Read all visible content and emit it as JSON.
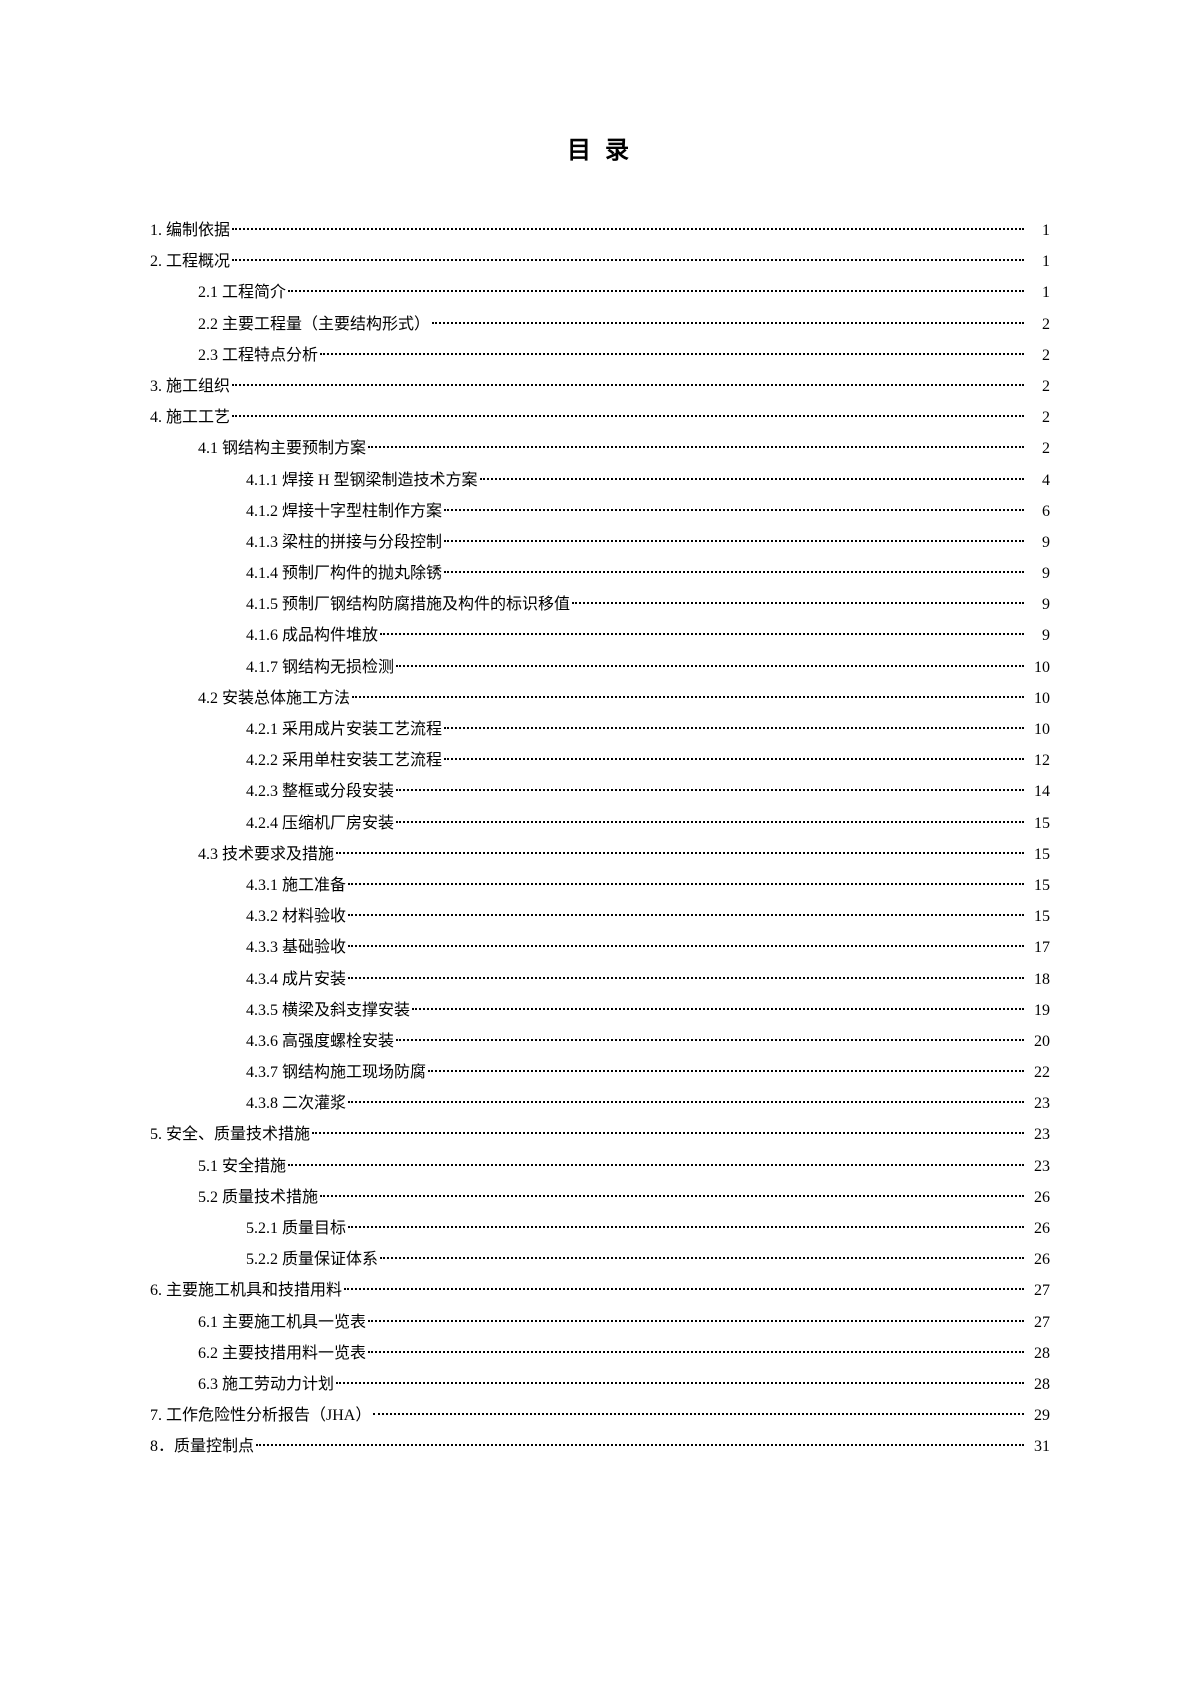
{
  "title": "目 录",
  "entries": [
    {
      "indent": 0,
      "label": "1. 编制依据",
      "page": "1"
    },
    {
      "indent": 0,
      "label": "2. 工程概况",
      "page": "1"
    },
    {
      "indent": 1,
      "label": "2.1 工程简介",
      "page": "1"
    },
    {
      "indent": 1,
      "label": "2.2 主要工程量（主要结构形式）",
      "page": "2"
    },
    {
      "indent": 1,
      "label": "2.3 工程特点分析",
      "page": "2"
    },
    {
      "indent": 0,
      "label": "3. 施工组织",
      "page": "2"
    },
    {
      "indent": 0,
      "label": "4. 施工工艺",
      "page": "2"
    },
    {
      "indent": 1,
      "label": "4.1 钢结构主要预制方案",
      "page": "2"
    },
    {
      "indent": 2,
      "label": "4.1.1 焊接 H 型钢梁制造技术方案",
      "page": "4"
    },
    {
      "indent": 2,
      "label": "4.1.2 焊接十字型柱制作方案",
      "page": "6"
    },
    {
      "indent": 2,
      "label": "4.1.3 梁柱的拼接与分段控制",
      "page": "9"
    },
    {
      "indent": 2,
      "label": "4.1.4 预制厂构件的抛丸除锈",
      "page": "9"
    },
    {
      "indent": 2,
      "label": "4.1.5 预制厂钢结构防腐措施及构件的标识移值",
      "page": "9"
    },
    {
      "indent": 2,
      "label": "4.1.6 成品构件堆放",
      "page": "9"
    },
    {
      "indent": 2,
      "label": "4.1.7 钢结构无损检测",
      "page": "10"
    },
    {
      "indent": 1,
      "label": "4.2 安装总体施工方法",
      "page": "10"
    },
    {
      "indent": 2,
      "label": "4.2.1 采用成片安装工艺流程",
      "page": "10"
    },
    {
      "indent": 2,
      "label": "4.2.2 采用单柱安装工艺流程",
      "page": "12"
    },
    {
      "indent": 2,
      "label": "4.2.3 整框或分段安装",
      "page": "14"
    },
    {
      "indent": 2,
      "label": "4.2.4 压缩机厂房安装",
      "page": "15"
    },
    {
      "indent": 1,
      "label": "4.3 技术要求及措施",
      "page": "15"
    },
    {
      "indent": 2,
      "label": "4.3.1 施工准备",
      "page": "15"
    },
    {
      "indent": 2,
      "label": "4.3.2 材料验收",
      "page": "15"
    },
    {
      "indent": 2,
      "label": "4.3.3 基础验收",
      "page": "17"
    },
    {
      "indent": 2,
      "label": "4.3.4 成片安装",
      "page": "18"
    },
    {
      "indent": 2,
      "label": "4.3.5 横梁及斜支撑安装",
      "page": "19"
    },
    {
      "indent": 2,
      "label": "4.3.6 高强度螺栓安装",
      "page": "20"
    },
    {
      "indent": 2,
      "label": "4.3.7 钢结构施工现场防腐",
      "page": "22"
    },
    {
      "indent": 2,
      "label": "4.3.8 二次灌浆",
      "page": "23"
    },
    {
      "indent": 0,
      "label": "5. 安全、质量技术措施",
      "page": "23"
    },
    {
      "indent": 1,
      "label": "5.1 安全措施",
      "page": "23"
    },
    {
      "indent": 1,
      "label": "5.2 质量技术措施",
      "page": "26"
    },
    {
      "indent": 2,
      "label": "5.2.1 质量目标",
      "page": "26"
    },
    {
      "indent": 2,
      "label": "5.2.2 质量保证体系",
      "page": "26"
    },
    {
      "indent": 0,
      "label": "6. 主要施工机具和技措用料",
      "page": "27"
    },
    {
      "indent": 1,
      "label": "6.1 主要施工机具一览表",
      "page": "27"
    },
    {
      "indent": 1,
      "label": "6.2 主要技措用料一览表",
      "page": "28"
    },
    {
      "indent": 1,
      "label": "6.3 施工劳动力计划",
      "page": "28"
    },
    {
      "indent": 0,
      "label": "7. 工作危险性分析报告（JHA）",
      "page": "29"
    },
    {
      "indent": 0,
      "label": "8．质量控制点",
      "page": "31"
    }
  ]
}
